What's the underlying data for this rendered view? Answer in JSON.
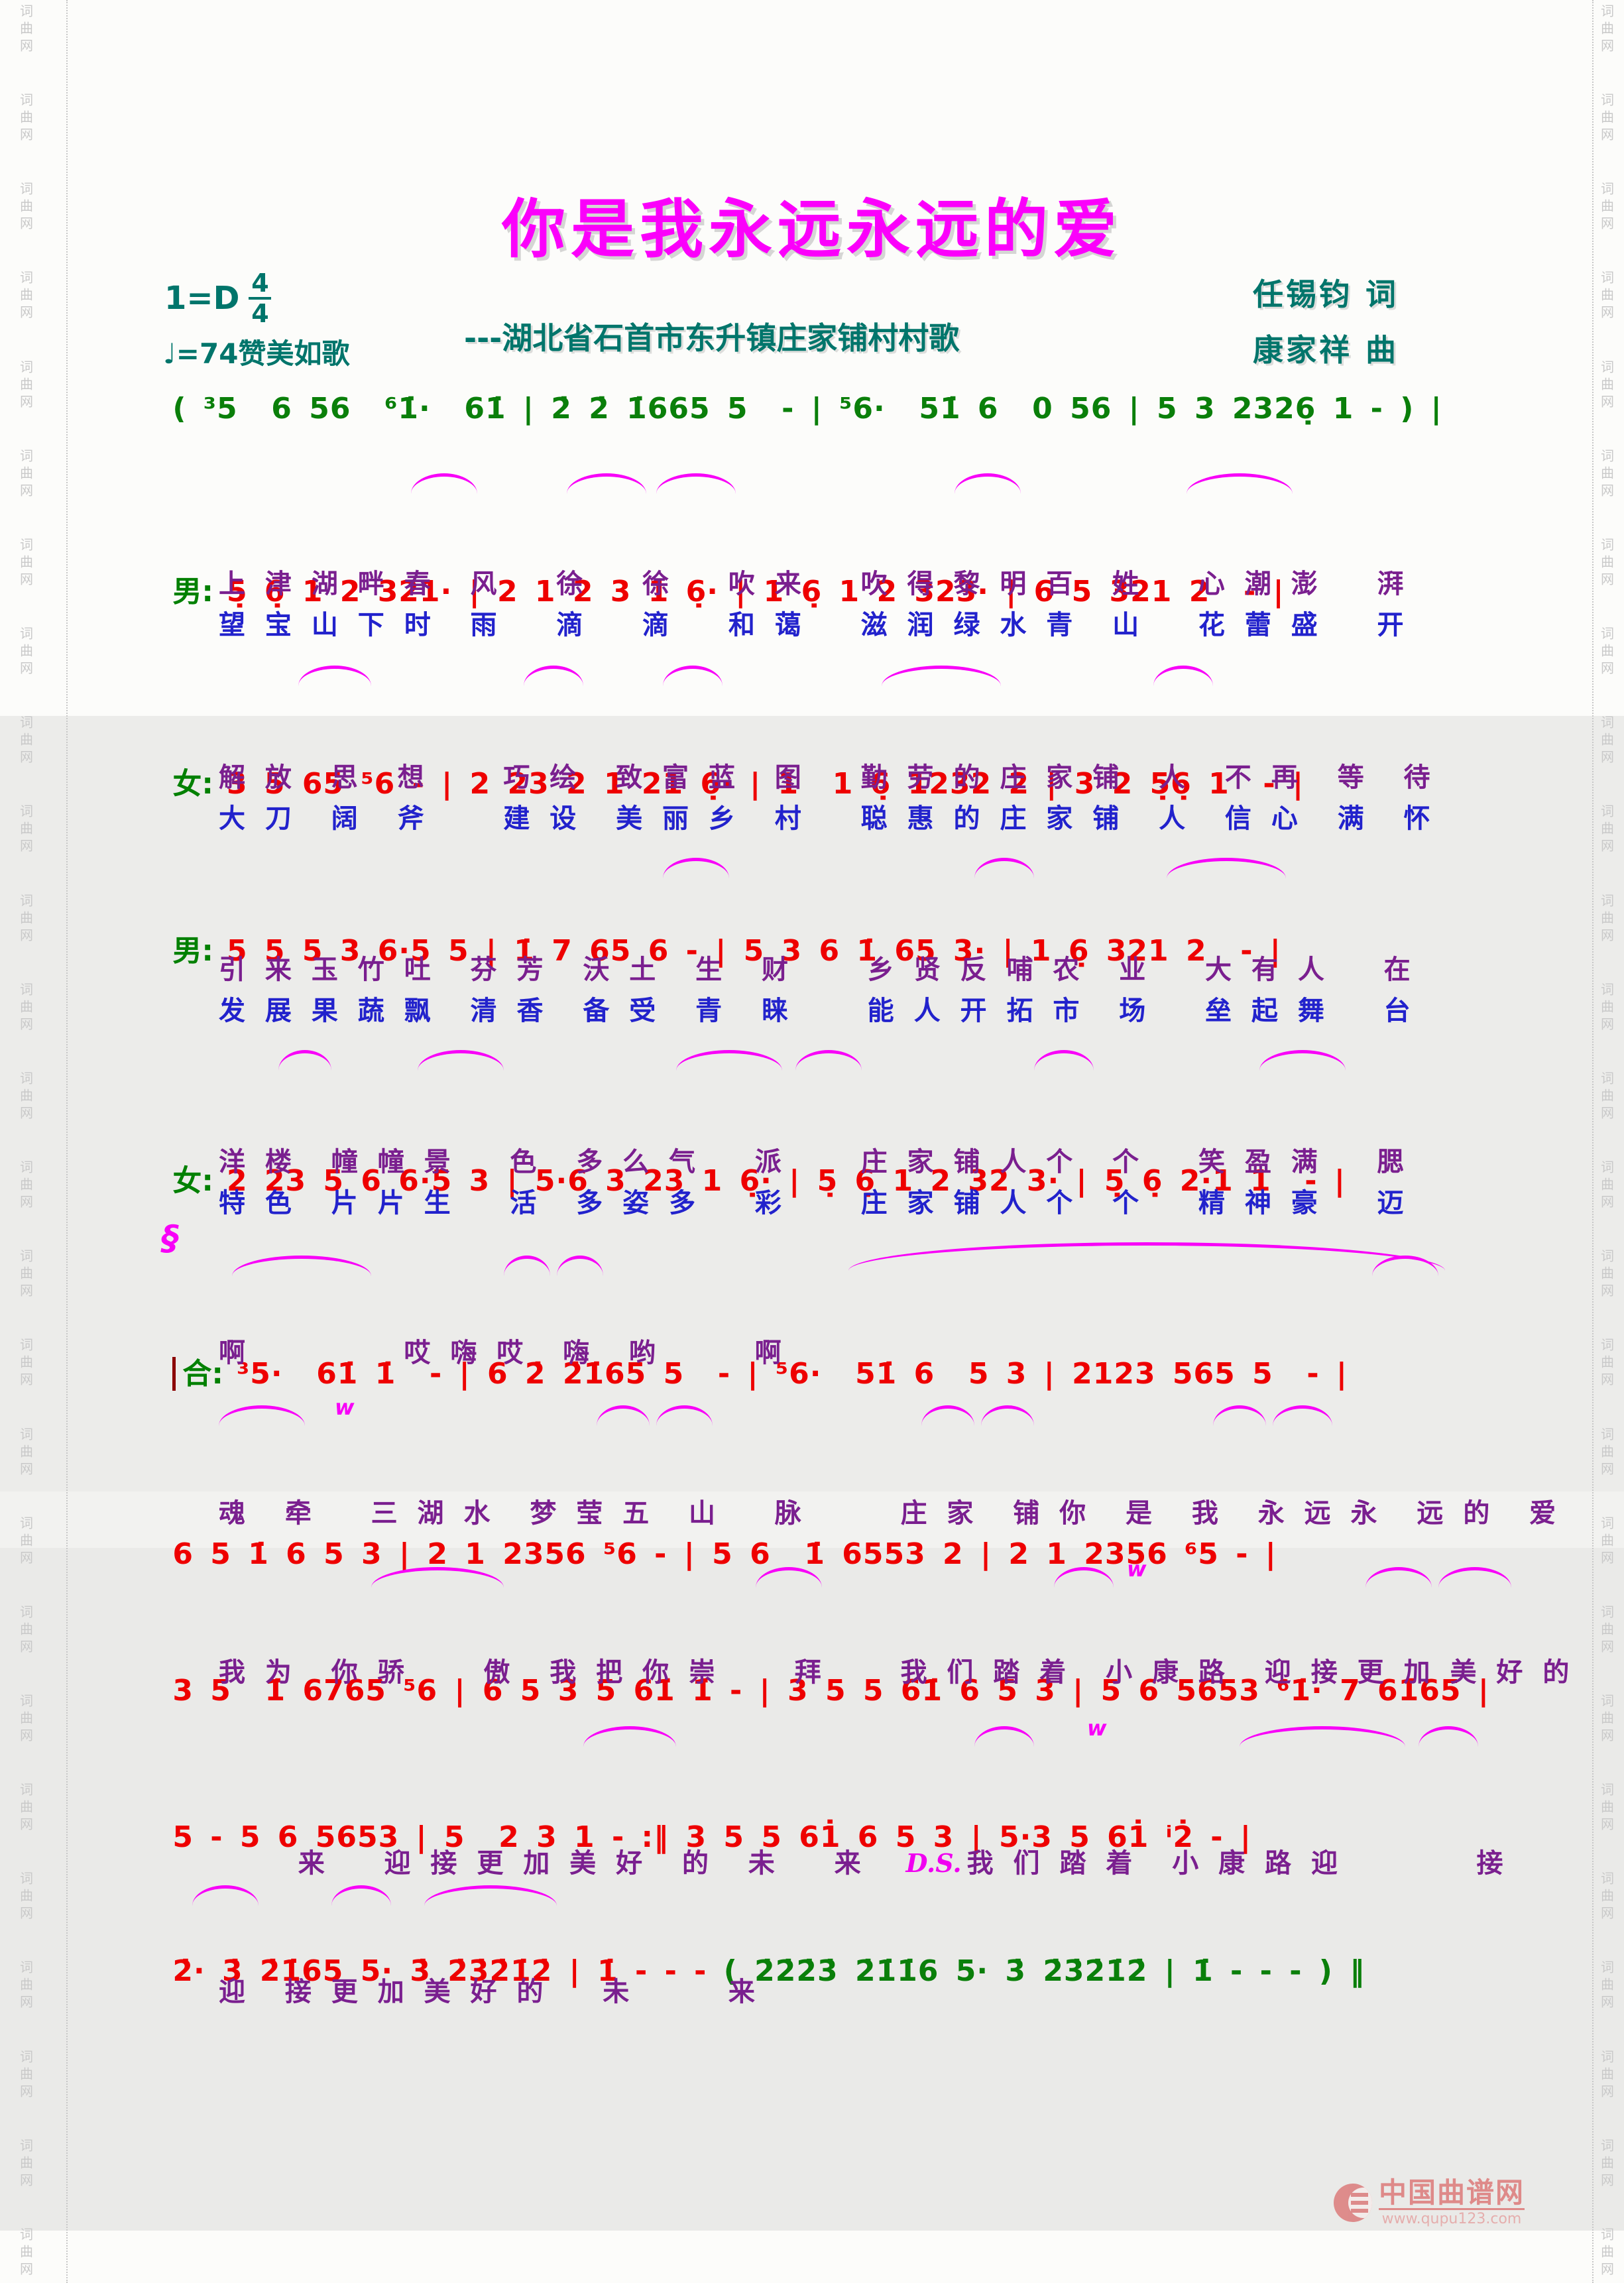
{
  "watermark": {
    "text": "词曲网"
  },
  "logo": {
    "name": "中国曲谱网",
    "url": "www.qupu123.com"
  },
  "header": {
    "title": "你是我永远永远的爱",
    "key": "1=D",
    "time_top": "4",
    "time_bottom": "4",
    "tempo": "♩=74",
    "tempo_desc": "赞美如歌",
    "subtitle": "---湖北省石首市东升镇庄家铺村村歌",
    "lyricist": "任锡钧  词",
    "composer": "康家祥  曲"
  },
  "segno": "§",
  "systems": [
    {
      "notes": "( ³5  6 56  ⁶1̇·  61̇ | 2̇ 2̇ 1̇665 5  - | ⁵6·  51̇ 6  0 56 | 5 3 2326̣ 1 - ) |"
    },
    {
      "label": "男:",
      "notes": "5̣ 6̣ 1 2 321· | 2 1 2 3 1 6̣· | 1 6̣ 1 2 323· | 6 5 321 2  - |",
      "lyric1": "上 津 湖 畔 春  风   徐   徐   吹 来   吹 得 黎 明 百  姓   心 潮 澎   湃",
      "lyric2": "望 宝 山 下 时  雨   滴   滴   和 蔼   滋 润 绿 水 青  山   花 蕾 盛   开"
    },
    {
      "label": "女:",
      "notes": "3 5 65 ⁵6 - | 2 23 2 1 21 6̣· | 1  1 6̣ 1232 2 | 3 2 5̣6̣ 1  - |",
      "lyric1": "解 放  思  想    巧 绘  致 富 蓝  图   勤 劳 的 庄 家 铺  人  不 再  等  待",
      "lyric2": "大 刀  阔  斧    建 设  美 丽 乡  村   聪 惠 的 庄 家 铺  人  信 心  满  怀"
    },
    {
      "label": "男:",
      "notes": "5 5 5 3 6·5 5 | 1̇ 7 65 6 - | 5 3 6 1̇ 65 3· | 1 6̣ 321 2  - |",
      "lyric1": "引 来 玉 竹 吐  芬 芳  沃 土  生  财    乡 贤 反 哺 农  业   大 有 人   在",
      "lyric2": "发 展 果 蔬 飘  清 香  备 受  青  睐    能 人 开 拓 市  场   垒 起 舞   台"
    },
    {
      "label": "女:",
      "notes": "2 23 5 6 6·5 3 | 5·6 3 23 1 6̣· | 5̣ 6̣ 1 2 32 3· | 5̣ 6̣ 2·1 1  - |",
      "lyric1": "洋 楼  幢 幢 景   色  多 么 气   派    庄 家 铺 人 个  个   笑 盈 满   腮",
      "lyric2": "特 色  片 片 生   活  多 姿 多   彩    庄 家 铺 人 个  个   精 神 豪   迈"
    },
    {
      "label": "合:",
      "notes": "³5·  61̇ 1̇  - | 6 2̇ 2̇1̇65 5  - | ⁵6·  51̇ 6  5 3 | 2123 565 5  - |",
      "lyric1": "啊        哎 嗨 哎  嗨  哟     啊"
    },
    {
      "notes": "6 5 1̇ 6 5 3 | 2 1 2356 ⁵6 - | 5 6  1̇ 6553 2 | 2 1 2356 ⁶5 - |",
      "lyric1": "魂  牵   三 湖 水  梦 莹 五  山   脉     庄 家  铺 你  是  我  永 远 永  远 的  爱"
    },
    {
      "notes": "3 5  1̇ 6765 ⁵6 | 6 5 3 5 61̇ 1̇ - | 3 5 5 61̇ 6 5 3 | 5 6 5653 ⁶1̇· 7 61̇65 |",
      "lyric1": "我 为  你 骄    傲  我 把 你 崇    拜    我 们 踏 着  小 康 路  迎 接 更 加 美 好 的   未"
    },
    {
      "notes": "5 - 5 6 5653 | 5  2 3 1 - :‖ 3 5 5 61̇ 6 5 3 | 5·3 5 61̇ ⁱ2̇ - |",
      "lyric_p1": "来   迎 接 更 加 美 好  的  未   来  ",
      "ds": "D.S.",
      "lyric_p2": "我 们 踏 着  小 康 路 迎       接"
    },
    {
      "notes_red": "2̇· 3̇ 2̇1̇65 5· 3̇ 2̇3̇2̇1̇2̇ | 1̇ - - - ",
      "notes_green": "( 2̇2̇2̇3̇ 2̇1̇1̇6 5· 3̇ 2̇3̇2̇1̇2̇ | 1̇ - - - ) ‖",
      "lyric1": "迎  接 更 加 美 好 的   未     来"
    }
  ]
}
